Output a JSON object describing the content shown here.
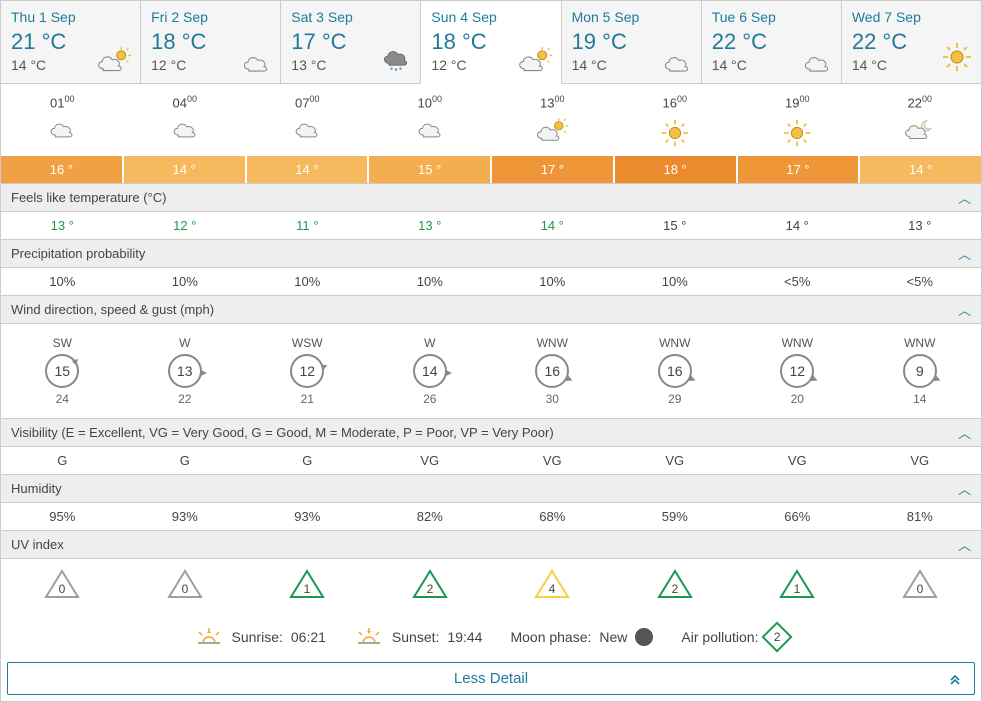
{
  "colors": {
    "accent": "#1f7a9b",
    "section_bg": "#eeeeee",
    "border": "#cccccc",
    "tab_bg": "#f5f5f5",
    "uv_low": "#9e9e9e",
    "uv_green": "#1a9850",
    "uv_yellow": "#f4d03f",
    "air_good": "#1a9850"
  },
  "days": [
    {
      "label": "Thu 1 Sep",
      "high": "21 °C",
      "low": "14 °C",
      "icon": "sun-cloud",
      "selected": false
    },
    {
      "label": "Fri 2 Sep",
      "high": "18 °C",
      "low": "12 °C",
      "icon": "cloud",
      "selected": false
    },
    {
      "label": "Sat 3 Sep",
      "high": "17 °C",
      "low": "13 °C",
      "icon": "rain-cloud",
      "selected": false
    },
    {
      "label": "Sun 4 Sep",
      "high": "18 °C",
      "low": "12 °C",
      "icon": "sun-cloud",
      "selected": true
    },
    {
      "label": "Mon 5 Sep",
      "high": "19 °C",
      "low": "14 °C",
      "icon": "cloud",
      "selected": false
    },
    {
      "label": "Tue 6 Sep",
      "high": "22 °C",
      "low": "14 °C",
      "icon": "cloud",
      "selected": false
    },
    {
      "label": "Wed 7 Sep",
      "high": "22 °C",
      "low": "14 °C",
      "icon": "sun",
      "selected": false
    }
  ],
  "hours": [
    {
      "hh": "01",
      "mm": "00",
      "icon": "cloud"
    },
    {
      "hh": "04",
      "mm": "00",
      "icon": "cloud"
    },
    {
      "hh": "07",
      "mm": "00",
      "icon": "cloud"
    },
    {
      "hh": "10",
      "mm": "00",
      "icon": "cloud"
    },
    {
      "hh": "13",
      "mm": "00",
      "icon": "sun-cloud"
    },
    {
      "hh": "16",
      "mm": "00",
      "icon": "sun"
    },
    {
      "hh": "19",
      "mm": "00",
      "icon": "sun"
    },
    {
      "hh": "22",
      "mm": "00",
      "icon": "moon-cloud"
    }
  ],
  "temps": [
    {
      "value": "16 °",
      "bg": "#f2a044"
    },
    {
      "value": "14 °",
      "bg": "#f6b95e"
    },
    {
      "value": "14 °",
      "bg": "#f6b95e"
    },
    {
      "value": "15 °",
      "bg": "#f4ad50"
    },
    {
      "value": "17 °",
      "bg": "#ef9638"
    },
    {
      "value": "18 °",
      "bg": "#ec8b2d"
    },
    {
      "value": "17 °",
      "bg": "#ef9638"
    },
    {
      "value": "14 °",
      "bg": "#f6b95e"
    }
  ],
  "sections": {
    "feels": {
      "title": "Feels like temperature (°C)",
      "values": [
        "13 °",
        "12 °",
        "11 °",
        "13 °",
        "14 °",
        "15 °",
        "14 °",
        "13 °"
      ],
      "cold_indices": [
        1,
        2
      ]
    },
    "precip": {
      "title": "Precipitation probability",
      "values": [
        "10%",
        "10%",
        "10%",
        "10%",
        "10%",
        "10%",
        "<5%",
        "<5%"
      ]
    },
    "wind": {
      "title": "Wind direction, speed & gust (mph)",
      "items": [
        {
          "dir": "SW",
          "speed": "15",
          "gust": "24",
          "angle": 45
        },
        {
          "dir": "W",
          "speed": "13",
          "gust": "22",
          "angle": 90
        },
        {
          "dir": "WSW",
          "speed": "12",
          "gust": "21",
          "angle": 67
        },
        {
          "dir": "W",
          "speed": "14",
          "gust": "26",
          "angle": 90
        },
        {
          "dir": "WNW",
          "speed": "16",
          "gust": "30",
          "angle": 112
        },
        {
          "dir": "WNW",
          "speed": "16",
          "gust": "29",
          "angle": 112
        },
        {
          "dir": "WNW",
          "speed": "12",
          "gust": "20",
          "angle": 112
        },
        {
          "dir": "WNW",
          "speed": "9",
          "gust": "14",
          "angle": 112
        }
      ]
    },
    "visibility": {
      "title": "Visibility (E = Excellent, VG = Very Good, G = Good, M = Moderate, P = Poor, VP = Very Poor)",
      "values": [
        "G",
        "G",
        "G",
        "VG",
        "VG",
        "VG",
        "VG",
        "VG"
      ]
    },
    "humidity": {
      "title": "Humidity",
      "values": [
        "95%",
        "93%",
        "93%",
        "82%",
        "68%",
        "59%",
        "66%",
        "81%"
      ]
    },
    "uv": {
      "title": "UV index",
      "items": [
        {
          "value": "0",
          "color": "#9e9e9e"
        },
        {
          "value": "0",
          "color": "#9e9e9e"
        },
        {
          "value": "1",
          "color": "#1a9850"
        },
        {
          "value": "2",
          "color": "#1a9850"
        },
        {
          "value": "4",
          "color": "#f4d03f"
        },
        {
          "value": "2",
          "color": "#1a9850"
        },
        {
          "value": "1",
          "color": "#1a9850"
        },
        {
          "value": "0",
          "color": "#9e9e9e"
        }
      ]
    }
  },
  "footer": {
    "sunrise_label": "Sunrise:",
    "sunrise": "06:21",
    "sunset_label": "Sunset:",
    "sunset": "19:44",
    "moon_label": "Moon phase:",
    "moon_phase": "New",
    "air_label": "Air pollution:",
    "air_value": "2"
  },
  "less_detail_label": "Less Detail"
}
